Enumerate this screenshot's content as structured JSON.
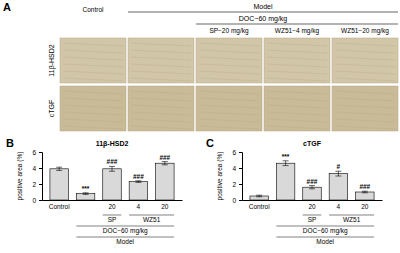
{
  "panel_a": {
    "panel": "A",
    "header": "Model",
    "treatment": "DOC−60 mg/kg",
    "columns": [
      "Control",
      null,
      "SP−20 mg/kg",
      "WZ51−4 mg/kg",
      "WZ51−20 mg/kg"
    ],
    "rows": [
      "11β-HSD2",
      "cTGF"
    ]
  },
  "chart_data": [
    {
      "type": "bar",
      "panel": "B",
      "title": "11β-HSD2",
      "y_label": "positive area (%)",
      "categories": [
        "Control",
        null,
        "20",
        "4",
        "20"
      ],
      "values": [
        3.9,
        0.8,
        3.9,
        2.3,
        4.6
      ],
      "errors": [
        0.2,
        0.1,
        0.3,
        0.1,
        0.2
      ],
      "annotations": [
        null,
        "***",
        "###",
        "###",
        "###"
      ],
      "x_groups": [
        {
          "label": "SP",
          "from": 2,
          "to": 2
        },
        {
          "label": "WZ51",
          "from": 3,
          "to": 4
        }
      ],
      "x_group_2": {
        "label": "DOC−60 mg/kg",
        "from": 1,
        "to": 4
      },
      "x_group_3": {
        "label": "Model",
        "from": 1,
        "to": 4
      },
      "color": "#d9d9d9",
      "ylim": [
        0,
        6
      ],
      "yticks": [
        0,
        2,
        4,
        6
      ]
    },
    {
      "type": "bar",
      "panel": "C",
      "title": "cTGF",
      "y_label": "positive area (%)",
      "categories": [
        "Control",
        null,
        "20",
        "4",
        "20"
      ],
      "values": [
        0.5,
        4.6,
        1.6,
        3.3,
        1.0
      ],
      "errors": [
        0.1,
        0.3,
        0.2,
        0.3,
        0.1
      ],
      "annotations": [
        null,
        "***",
        "###",
        "#",
        "###"
      ],
      "x_groups": [
        {
          "label": "SP",
          "from": 2,
          "to": 2
        },
        {
          "label": "WZ51",
          "from": 3,
          "to": 4
        }
      ],
      "x_group_2": {
        "label": "DOC−60 mg/kg",
        "from": 1,
        "to": 4
      },
      "x_group_3": {
        "label": "Model",
        "from": 1,
        "to": 4
      },
      "color": "#d9d9d9",
      "ylim": [
        0,
        6
      ],
      "yticks": [
        0,
        2,
        4,
        6
      ]
    }
  ]
}
